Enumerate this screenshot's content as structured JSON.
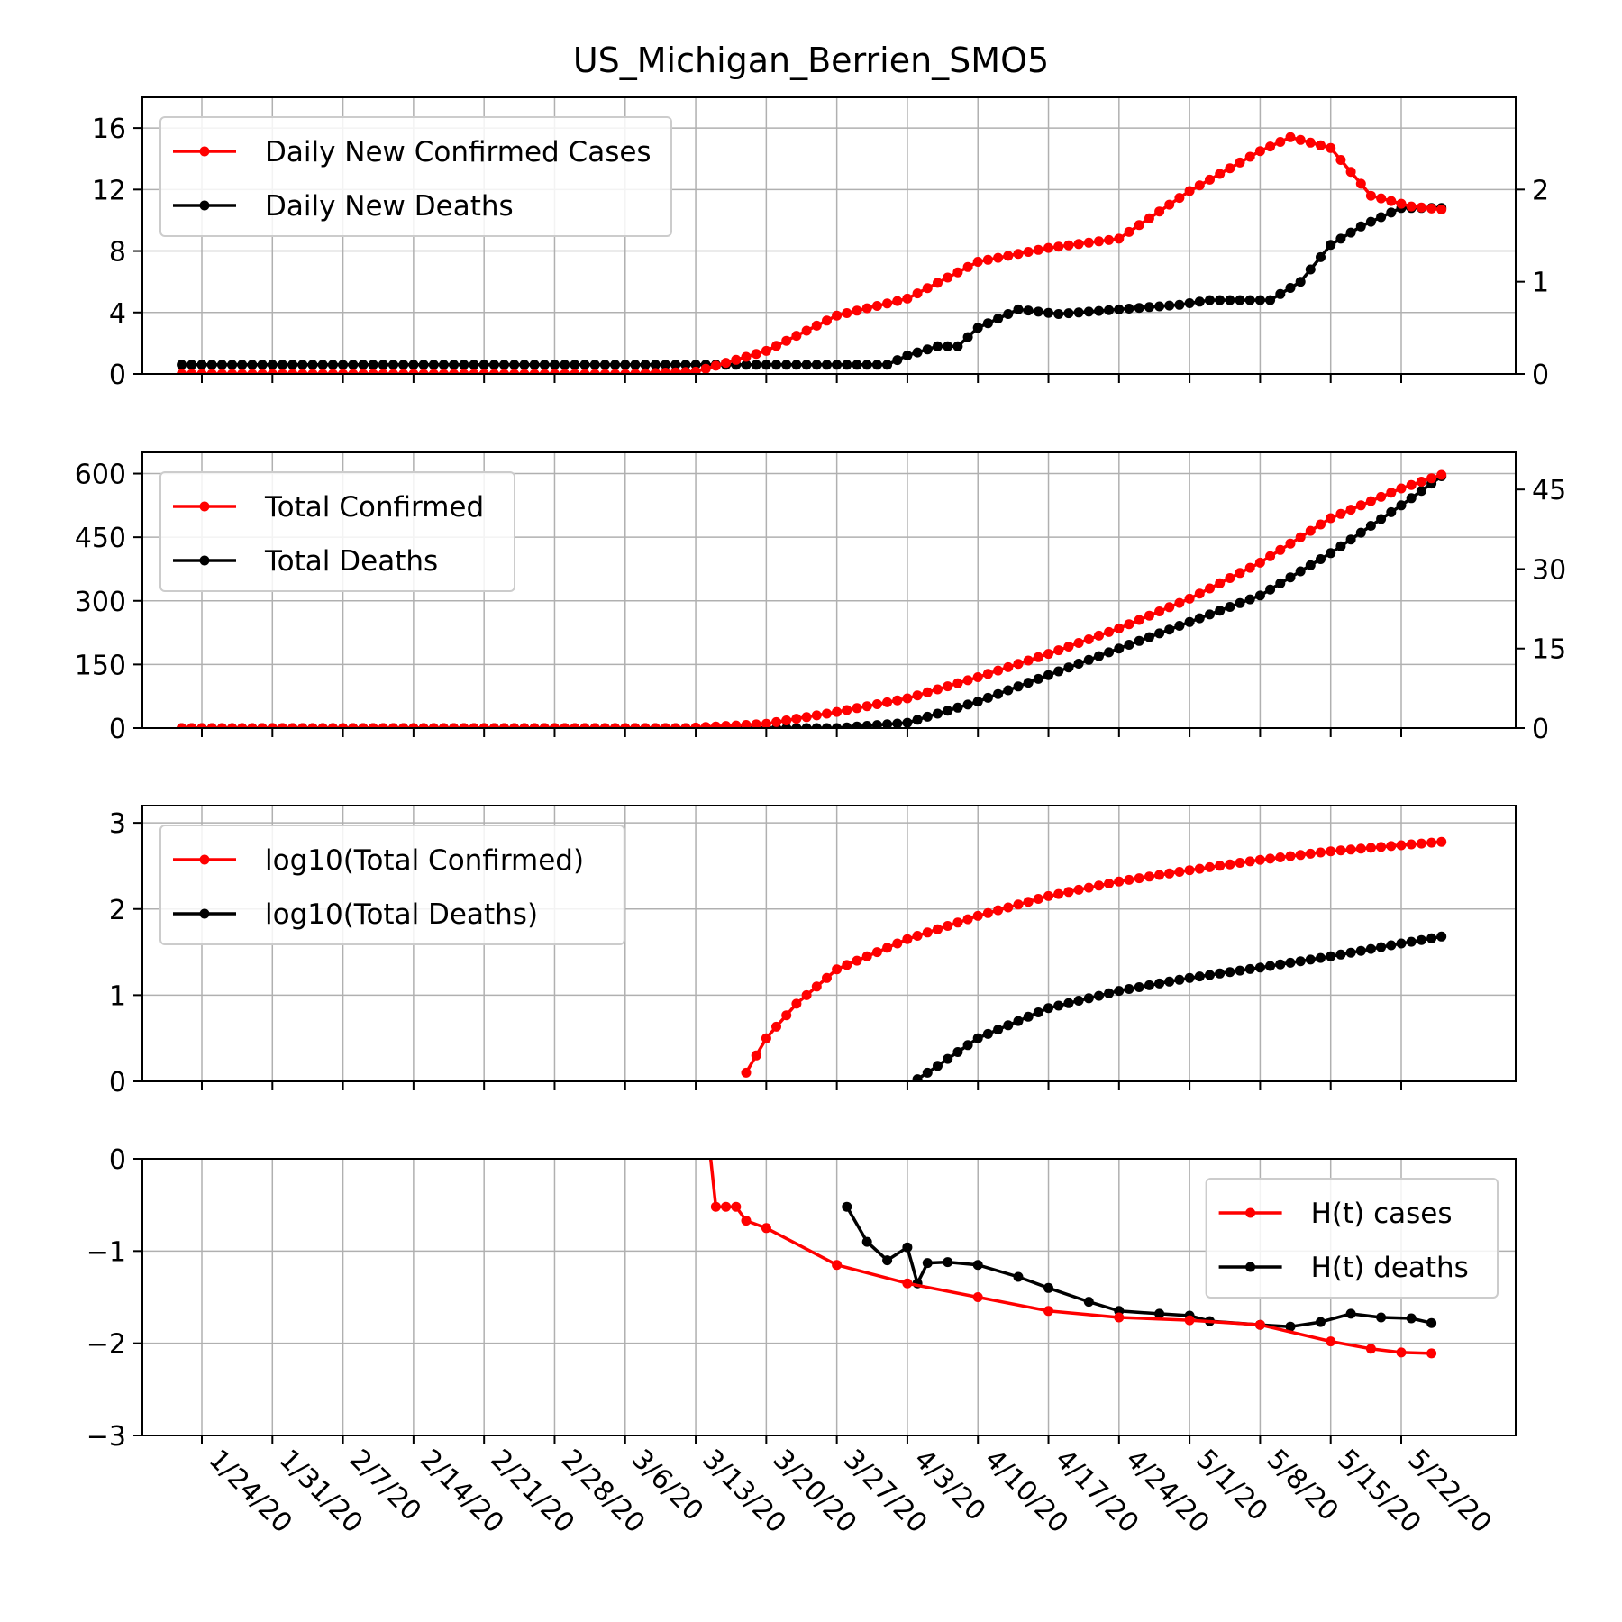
{
  "title": "US_Michigan_Berrien_SMO5",
  "x_tick_labels": [
    "1/24/20",
    "1/31/20",
    "2/7/20",
    "2/14/20",
    "2/21/20",
    "2/28/20",
    "3/6/20",
    "3/13/20",
    "3/20/20",
    "3/27/20",
    "4/3/20",
    "4/10/20",
    "4/17/20",
    "4/24/20",
    "5/1/20",
    "5/8/20",
    "5/15/20",
    "5/22/20"
  ],
  "colors": {
    "cases": "#ff0000",
    "deaths": "#000000",
    "grid": "#b0b0b0"
  },
  "chart_data": [
    {
      "type": "line",
      "panel": "daily",
      "x_start": "1/22/20",
      "x_end": "5/26/20",
      "x_ticks": [
        "1/24/20",
        "1/31/20",
        "2/7/20",
        "2/14/20",
        "2/21/20",
        "2/28/20",
        "3/6/20",
        "3/13/20",
        "3/20/20",
        "3/27/20",
        "4/3/20",
        "4/10/20",
        "4/17/20",
        "4/24/20",
        "5/1/20",
        "5/8/20",
        "5/15/20",
        "5/22/20"
      ],
      "ylim": [
        0,
        18
      ],
      "yticks": [
        0,
        4,
        8,
        12,
        16
      ],
      "y2lim": [
        0,
        3
      ],
      "y2ticks": [
        0,
        1,
        2
      ],
      "legend": {
        "placement": "top-left",
        "entries": [
          "Daily New Confirmed Cases",
          "Daily New Deaths"
        ]
      },
      "grid": true,
      "series": [
        {
          "name": "Daily New Confirmed Cases",
          "axis": "left",
          "color": "#ff0000",
          "anchors": [
            [
              "3/6/20",
              0
            ],
            [
              "3/13/20",
              0.15
            ],
            [
              "3/20/20",
              1.5
            ],
            [
              "3/27/20",
              3.8
            ],
            [
              "4/3/20",
              4.9
            ],
            [
              "4/10/20",
              7.3
            ],
            [
              "4/17/20",
              8.2
            ],
            [
              "4/24/20",
              8.8
            ],
            [
              "5/1/20",
              11.9
            ],
            [
              "5/8/20",
              14.5
            ],
            [
              "5/11/20",
              15.4
            ],
            [
              "5/15/20",
              14.7
            ],
            [
              "5/19/20",
              11.6
            ],
            [
              "5/23/20",
              10.9
            ],
            [
              "5/26/20",
              10.7
            ]
          ]
        },
        {
          "name": "Daily New Deaths",
          "axis": "right",
          "color": "#000000",
          "anchors": [
            [
              "3/28/20",
              0.1
            ],
            [
              "4/1/20",
              0.1
            ],
            [
              "4/3/20",
              0.2
            ],
            [
              "4/6/20",
              0.3
            ],
            [
              "4/8/20",
              0.3
            ],
            [
              "4/10/20",
              0.5
            ],
            [
              "4/12/20",
              0.6
            ],
            [
              "4/14/20",
              0.7
            ],
            [
              "4/18/20",
              0.65
            ],
            [
              "4/24/20",
              0.7
            ],
            [
              "4/30/20",
              0.75
            ],
            [
              "5/3/20",
              0.8
            ],
            [
              "5/9/20",
              0.8
            ],
            [
              "5/12/20",
              1.0
            ],
            [
              "5/15/20",
              1.4
            ],
            [
              "5/18/20",
              1.6
            ],
            [
              "5/22/20",
              1.8
            ],
            [
              "5/26/20",
              1.8
            ]
          ]
        }
      ]
    },
    {
      "type": "line",
      "panel": "total",
      "x_start": "1/22/20",
      "x_end": "5/26/20",
      "ylim": [
        0,
        650
      ],
      "yticks": [
        0,
        150,
        300,
        450,
        600
      ],
      "y2lim": [
        0,
        52
      ],
      "y2ticks": [
        0,
        15,
        30,
        45
      ],
      "legend": {
        "placement": "top-left",
        "entries": [
          "Total Confirmed",
          "Total Deaths"
        ]
      },
      "grid": true,
      "series": [
        {
          "name": "Total Confirmed",
          "axis": "left",
          "color": "#ff0000",
          "anchors": [
            [
              "3/12/20",
              0
            ],
            [
              "3/20/20",
              10
            ],
            [
              "3/27/20",
              38
            ],
            [
              "4/3/20",
              70
            ],
            [
              "4/10/20",
              120
            ],
            [
              "4/17/20",
              175
            ],
            [
              "4/24/20",
              235
            ],
            [
              "5/1/20",
              305
            ],
            [
              "5/8/20",
              390
            ],
            [
              "5/15/20",
              495
            ],
            [
              "5/22/20",
              565
            ],
            [
              "5/26/20",
              597
            ]
          ]
        },
        {
          "name": "Total Deaths",
          "axis": "right",
          "color": "#000000",
          "anchors": [
            [
              "3/27/20",
              0
            ],
            [
              "4/3/20",
              1
            ],
            [
              "4/10/20",
              5
            ],
            [
              "4/17/20",
              10
            ],
            [
              "4/24/20",
              15
            ],
            [
              "5/1/20",
              20
            ],
            [
              "5/8/20",
              25
            ],
            [
              "5/15/20",
              33
            ],
            [
              "5/22/20",
              42
            ],
            [
              "5/26/20",
              47.5
            ]
          ]
        }
      ]
    },
    {
      "type": "line",
      "panel": "log",
      "x_start": "1/22/20",
      "x_end": "5/26/20",
      "ylim": [
        0,
        3.2
      ],
      "yticks": [
        0,
        1,
        2,
        3
      ],
      "legend": {
        "placement": "top-left",
        "entries": [
          "log10(Total Confirmed)",
          "log10(Total Deaths)"
        ]
      },
      "grid": true,
      "series": [
        {
          "name": "log10(Total Confirmed)",
          "color": "#ff0000",
          "anchors": [
            [
              "3/18/20",
              0.1
            ],
            [
              "3/19/20",
              0.3
            ],
            [
              "3/20/20",
              0.5
            ],
            [
              "3/23/20",
              0.9
            ],
            [
              "3/27/20",
              1.3
            ],
            [
              "4/3/20",
              1.65
            ],
            [
              "4/10/20",
              1.92
            ],
            [
              "4/17/20",
              2.15
            ],
            [
              "4/24/20",
              2.32
            ],
            [
              "5/1/20",
              2.45
            ],
            [
              "5/8/20",
              2.57
            ],
            [
              "5/15/20",
              2.67
            ],
            [
              "5/22/20",
              2.74
            ],
            [
              "5/26/20",
              2.78
            ]
          ]
        },
        {
          "name": "log10(Total Deaths)",
          "color": "#000000",
          "anchors": [
            [
              "4/3/20",
              -0.05
            ],
            [
              "4/5/20",
              0.1
            ],
            [
              "4/10/20",
              0.5
            ],
            [
              "4/17/20",
              0.85
            ],
            [
              "4/24/20",
              1.05
            ],
            [
              "5/1/20",
              1.2
            ],
            [
              "5/8/20",
              1.32
            ],
            [
              "5/15/20",
              1.45
            ],
            [
              "5/22/20",
              1.6
            ],
            [
              "5/26/20",
              1.68
            ]
          ]
        }
      ]
    },
    {
      "type": "line",
      "panel": "hurst",
      "x_start": "1/22/20",
      "x_end": "5/26/20",
      "ylim": [
        -3,
        0
      ],
      "yticks": [
        -3,
        -2,
        -1,
        0
      ],
      "ytick_labels": [
        "−3",
        "−2",
        "−1",
        "0"
      ],
      "legend": {
        "placement": "top-right",
        "entries": [
          "H(t) cases",
          "H(t) deaths"
        ]
      },
      "grid": true,
      "series": [
        {
          "name": "H(t) cases",
          "color": "#ff0000",
          "points": [
            [
              "3/14/20",
              0.5
            ],
            [
              "3/15/20",
              -0.52
            ],
            [
              "3/16/20",
              -0.52
            ],
            [
              "3/17/20",
              -0.52
            ],
            [
              "3/18/20",
              -0.67
            ],
            [
              "3/20/20",
              -0.75
            ],
            [
              "3/27/20",
              -1.15
            ],
            [
              "4/3/20",
              -1.35
            ],
            [
              "4/10/20",
              -1.5
            ],
            [
              "4/17/20",
              -1.65
            ],
            [
              "4/24/20",
              -1.72
            ],
            [
              "5/1/20",
              -1.75
            ],
            [
              "5/8/20",
              -1.8
            ],
            [
              "5/15/20",
              -1.98
            ],
            [
              "5/19/20",
              -2.06
            ],
            [
              "5/22/20",
              -2.1
            ],
            [
              "5/25/20",
              -2.11
            ]
          ]
        },
        {
          "name": "H(t) deaths",
          "color": "#000000",
          "points": [
            [
              "3/28/20",
              -0.52
            ],
            [
              "3/30/20",
              -0.9
            ],
            [
              "4/1/20",
              -1.1
            ],
            [
              "4/3/20",
              -0.96
            ],
            [
              "4/4/20",
              -1.35
            ],
            [
              "4/5/20",
              -1.13
            ],
            [
              "4/7/20",
              -1.12
            ],
            [
              "4/10/20",
              -1.15
            ],
            [
              "4/14/20",
              -1.28
            ],
            [
              "4/17/20",
              -1.4
            ],
            [
              "4/21/20",
              -1.55
            ],
            [
              "4/24/20",
              -1.65
            ],
            [
              "4/28/20",
              -1.68
            ],
            [
              "5/1/20",
              -1.7
            ],
            [
              "5/3/20",
              -1.76
            ],
            [
              "5/8/20",
              -1.8
            ],
            [
              "5/11/20",
              -1.82
            ],
            [
              "5/14/20",
              -1.77
            ],
            [
              "5/17/20",
              -1.68
            ],
            [
              "5/20/20",
              -1.72
            ],
            [
              "5/23/20",
              -1.73
            ],
            [
              "5/25/20",
              -1.78
            ]
          ]
        }
      ]
    }
  ]
}
